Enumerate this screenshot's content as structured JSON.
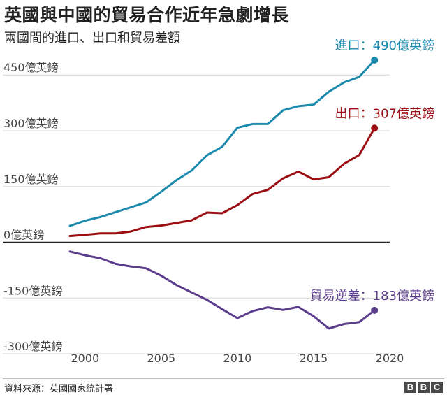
{
  "header": {
    "title": "英國與中國的貿易合作近年急劇增長",
    "subtitle": "兩國間的進口、出口和貿易差額"
  },
  "footer": {
    "source": "資料來源：英國國家統計署",
    "logo": [
      "B",
      "B",
      "C"
    ]
  },
  "chart_data": {
    "type": "line",
    "title": "英國與中國的貿易合作近年急劇增長",
    "subtitle": "兩國間的進口、出口和貿易差額",
    "xlim": [
      1999,
      2020
    ],
    "ylim": [
      -330,
      520
    ],
    "x_ticks": [
      2000,
      2005,
      2010,
      2015,
      2020
    ],
    "y_ticks": [
      {
        "value": 450,
        "label": "450億英鎊"
      },
      {
        "value": 300,
        "label": "300億英鎊"
      },
      {
        "value": 150,
        "label": "150億英鎊"
      },
      {
        "value": 0,
        "label": "0億英鎊"
      },
      {
        "value": -150,
        "label": "-150億英鎊"
      },
      {
        "value": -300,
        "label": "-300億英鎊"
      }
    ],
    "x": [
      1999,
      2000,
      2001,
      2002,
      2003,
      2004,
      2005,
      2006,
      2007,
      2008,
      2009,
      2010,
      2011,
      2012,
      2013,
      2014,
      2015,
      2016,
      2017,
      2018,
      2019
    ],
    "series": [
      {
        "name": "進口",
        "label": "進口：490億英鎊",
        "color": "#1b8aad",
        "values": [
          44,
          58,
          68,
          81,
          94,
          107,
          136,
          167,
          193,
          234,
          257,
          308,
          318,
          318,
          355,
          366,
          370,
          405,
          430,
          445,
          490
        ]
      },
      {
        "name": "出口",
        "label": "出口：307億英鎊",
        "color": "#9b0f14",
        "values": [
          17,
          20,
          24,
          24,
          29,
          41,
          45,
          52,
          59,
          80,
          78,
          100,
          130,
          141,
          172,
          190,
          169,
          175,
          211,
          235,
          307
        ]
      },
      {
        "name": "貿易逆差",
        "label": "貿易逆差：183億英鎊",
        "color": "#5b3d8c",
        "values": [
          -25,
          -35,
          -43,
          -58,
          -65,
          -70,
          -90,
          -115,
          -135,
          -155,
          -180,
          -204,
          -185,
          -175,
          -182,
          -174,
          -199,
          -232,
          -220,
          -215,
          -183
        ]
      }
    ]
  }
}
